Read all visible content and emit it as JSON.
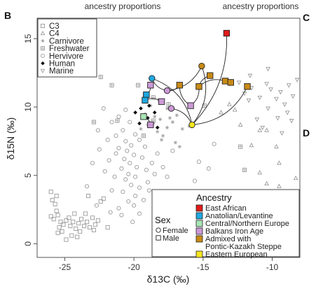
{
  "header": {
    "left_text": "ancestry proportions",
    "right_text": "ancestry proportions"
  },
  "panel_letters": {
    "left": "B",
    "right_top": "C",
    "right_mid": "D"
  },
  "chart_data": {
    "type": "scatter",
    "title": "",
    "xlabel": "δ13C (‰)",
    "ylabel": "δ15N (‰)",
    "xlim": [
      -27,
      -8
    ],
    "ylim": [
      -1,
      16.5
    ],
    "xticks": [
      -25,
      -20,
      -15,
      -10
    ],
    "yticks": [
      0,
      5,
      10,
      15
    ],
    "grid": false,
    "reference_groups": {
      "legend_position": "top-left",
      "entries": [
        {
          "name": "C3",
          "marker": "square"
        },
        {
          "name": "C4",
          "marker": "triangle"
        },
        {
          "name": "Carnivore",
          "marker": "asterisk"
        },
        {
          "name": "Freshwater",
          "marker": "boxed-cross"
        },
        {
          "name": "Hervivore",
          "marker": "circle"
        },
        {
          "name": "Human",
          "marker": "diamond-filled"
        },
        {
          "name": "Marine",
          "marker": "triangle-down"
        }
      ],
      "color": "#9a9a9a"
    },
    "series": [
      {
        "name": "C3",
        "points": [
          [
            -26,
            3.8
          ],
          [
            -25.9,
            3.2
          ],
          [
            -25.7,
            2.9
          ],
          [
            -25.6,
            2.4
          ],
          [
            -25.5,
            2.1
          ],
          [
            -25.8,
            1.8
          ],
          [
            -25.3,
            1.6
          ],
          [
            -25.1,
            1.4
          ],
          [
            -25.4,
            1.2
          ],
          [
            -24.9,
            1.7
          ],
          [
            -24.7,
            1.9
          ],
          [
            -24.6,
            1.3
          ],
          [
            -24.4,
            1.6
          ],
          [
            -24.2,
            1.1
          ],
          [
            -24.0,
            1.5
          ],
          [
            -23.8,
            1.8
          ],
          [
            -23.6,
            1.3
          ],
          [
            -23.4,
            1.6
          ],
          [
            -23.2,
            1.2
          ],
          [
            -23.0,
            1.9
          ],
          [
            -22.8,
            1.4
          ],
          [
            -22.6,
            1.7
          ],
          [
            -24.5,
            0.6
          ],
          [
            -25.2,
            0.9
          ],
          [
            -23.9,
            0.9
          ],
          [
            -24.3,
            2.2
          ],
          [
            -25.6,
            3.5
          ],
          [
            -23.5,
            2.2
          ],
          [
            -23.3,
            3.5
          ],
          [
            -22.2,
            3.3
          ],
          [
            -24.9,
            0.3
          ],
          [
            -24.1,
            0.5
          ],
          [
            -22.9,
            1.0
          ],
          [
            -25.5,
            0.8
          ],
          [
            -21.9,
            1.2
          ],
          [
            -26.0,
            2.0
          ],
          [
            -22.4,
            3.1
          ]
        ]
      },
      {
        "name": "C4",
        "points": [
          [
            -13.1,
            10.2
          ],
          [
            -12.7,
            9.8
          ],
          [
            -12.3,
            8.7
          ],
          [
            -13.7,
            9.6
          ],
          [
            -10.4,
            8.3
          ],
          [
            -9.7,
            7.1
          ],
          [
            -9.5,
            5.9
          ],
          [
            -10.4,
            4.4
          ],
          [
            -8.3,
            4.8
          ],
          [
            -8.7,
            3.8
          ],
          [
            -9.5,
            4.2
          ],
          [
            -10.9,
            5.2
          ],
          [
            -11.5,
            7.2
          ],
          [
            -10.9,
            8.3
          ]
        ]
      },
      {
        "name": "Carnivore",
        "points": [
          [
            -18.1,
            9.1
          ],
          [
            -18.6,
            8.8
          ],
          [
            -17.6,
            8.5
          ],
          [
            -18.3,
            8.2
          ],
          [
            -17.9,
            7.9
          ],
          [
            -19.2,
            9.5
          ],
          [
            -19.0,
            8.7
          ],
          [
            -17.4,
            9.2
          ],
          [
            -17.2,
            8.9
          ],
          [
            -16.9,
            9.4
          ],
          [
            -18.8,
            10.1
          ],
          [
            -18.0,
            7.6
          ],
          [
            -17.0,
            7.4
          ],
          [
            -16.5,
            8.4
          ],
          [
            -16.7,
            7.1
          ],
          [
            -18.5,
            9.3
          ],
          [
            -19.5,
            8.4
          ],
          [
            -18.2,
            10.5
          ],
          [
            -17.6,
            9.9
          ],
          [
            -16.0,
            8.6
          ]
        ]
      },
      {
        "name": "Freshwater",
        "points": [
          [
            -22.9,
            8.9
          ],
          [
            -19.2,
            10.9
          ],
          [
            -18.6,
            10.7
          ],
          [
            -19.7,
            11.6
          ],
          [
            -21.6,
            11.6
          ],
          [
            -21.2,
            9.0
          ],
          [
            -19.3,
            7.9
          ],
          [
            -22.4,
            12.2
          ],
          [
            -14.9,
            10.1
          ],
          [
            -12.3,
            7.1
          ],
          [
            -12.0,
            5.4
          ],
          [
            -18.6,
            9.0
          ],
          [
            -17.5,
            10.2
          ]
        ]
      },
      {
        "name": "Hervivore",
        "points": [
          [
            -22.2,
            9.9
          ],
          [
            -21.1,
            9.3
          ],
          [
            -21.6,
            8.9
          ],
          [
            -20.8,
            8.3
          ],
          [
            -21.3,
            7.9
          ],
          [
            -20.6,
            7.5
          ],
          [
            -20.2,
            7.2
          ],
          [
            -21.1,
            7.0
          ],
          [
            -20.5,
            6.8
          ],
          [
            -20.0,
            6.5
          ],
          [
            -21.3,
            6.6
          ],
          [
            -20.7,
            6.2
          ],
          [
            -20.3,
            5.9
          ],
          [
            -19.8,
            5.6
          ],
          [
            -20.9,
            5.5
          ],
          [
            -20.4,
            5.1
          ],
          [
            -19.9,
            4.9
          ],
          [
            -20.6,
            4.7
          ],
          [
            -20.2,
            4.3
          ],
          [
            -19.6,
            4.1
          ],
          [
            -20.8,
            3.8
          ],
          [
            -19.9,
            3.5
          ],
          [
            -20.4,
            3.1
          ],
          [
            -20.0,
            2.8
          ],
          [
            -21.4,
            4.9
          ],
          [
            -19.4,
            6.3
          ],
          [
            -19.1,
            5.4
          ],
          [
            -19.0,
            4.5
          ],
          [
            -18.7,
            5.9
          ],
          [
            -18.5,
            5.1
          ],
          [
            -18.9,
            3.9
          ],
          [
            -19.3,
            3.2
          ],
          [
            -21.8,
            6.1
          ],
          [
            -22.1,
            5.3
          ],
          [
            -21.6,
            3.9
          ],
          [
            -22.5,
            6.9
          ],
          [
            -23.0,
            5.9
          ],
          [
            -23.4,
            4.2
          ],
          [
            -22.7,
            2.8
          ],
          [
            -21.1,
            2.6
          ],
          [
            -20.9,
            2.1
          ],
          [
            -21.7,
            2.3
          ],
          [
            -19.6,
            2.2
          ],
          [
            -18.3,
            6.6
          ],
          [
            -17.9,
            5.6
          ],
          [
            -17.6,
            4.9
          ],
          [
            -20.6,
            9.8
          ],
          [
            -20.3,
            8.9
          ],
          [
            -19.9,
            8.0
          ],
          [
            -19.6,
            7.6
          ],
          [
            -19.2,
            7.1
          ],
          [
            -21.9,
            7.6
          ],
          [
            -22.6,
            8.3
          ],
          [
            -20.1,
            1.6
          ],
          [
            -18.1,
            2.0
          ],
          [
            -15.6,
            4.6
          ],
          [
            -15.3,
            6.0
          ],
          [
            -17.2,
            6.8
          ],
          [
            -14.2,
            7.3
          ],
          [
            -14.6,
            5.5
          ]
        ]
      },
      {
        "name": "Human",
        "points": [
          [
            -19.5,
            9.9
          ],
          [
            -19.9,
            9.6
          ],
          [
            -19.3,
            9.3
          ],
          [
            -19.0,
            9.2
          ],
          [
            -19.6,
            8.8
          ],
          [
            -18.8,
            8.8
          ],
          [
            -18.5,
            9.6
          ],
          [
            -18.9,
            10.1
          ],
          [
            -18.3,
            8.5
          ],
          [
            -19.1,
            10.6
          ]
        ]
      },
      {
        "name": "Marine",
        "points": [
          [
            -12.0,
            11.0
          ],
          [
            -11.5,
            11.4
          ],
          [
            -11.7,
            10.5
          ],
          [
            -10.9,
            10.7
          ],
          [
            -10.4,
            11.7
          ],
          [
            -10.1,
            11.3
          ],
          [
            -9.7,
            10.6
          ],
          [
            -9.4,
            11.1
          ],
          [
            -9.1,
            10.2
          ],
          [
            -8.8,
            11.6
          ],
          [
            -8.5,
            10.8
          ],
          [
            -8.9,
            9.6
          ],
          [
            -9.6,
            9.2
          ],
          [
            -10.3,
            9.9
          ],
          [
            -11.1,
            9.1
          ],
          [
            -10.7,
            8.5
          ],
          [
            -9.3,
            8.1
          ],
          [
            -12.4,
            11.8
          ],
          [
            -13.1,
            11.7
          ],
          [
            -11.6,
            12.3
          ],
          [
            -10.3,
            12.8
          ],
          [
            -8.2,
            12.0
          ],
          [
            -8.6,
            9.0
          ]
        ]
      }
    ],
    "ancestry_individuals": {
      "legend_title": "Ancestry",
      "categories": [
        {
          "name": "East African",
          "color": "#e01b1b"
        },
        {
          "name": "Anatolian/Levantine",
          "color": "#1ea8e0"
        },
        {
          "name": "Central/Northern Europe",
          "color": "#a8e6b5"
        },
        {
          "name": "Balkans Iron Age",
          "color": "#cc99d6"
        },
        {
          "name": "Admixed with Pontic-Kazakh Steppe",
          "color": "#c98a16"
        },
        {
          "name": "Eastern European",
          "color": "#f5e61e"
        }
      ],
      "points": [
        {
          "x": -13.3,
          "y": 15.4,
          "category": "East African",
          "sex": "Male"
        },
        {
          "x": -18.7,
          "y": 12.1,
          "category": "Anatolian/Levantine",
          "sex": "Female"
        },
        {
          "x": -19.1,
          "y": 10.9,
          "category": "Anatolian/Levantine",
          "sex": "Male"
        },
        {
          "x": -19.2,
          "y": 10.5,
          "category": "Anatolian/Levantine",
          "sex": "Male"
        },
        {
          "x": -19.3,
          "y": 9.3,
          "category": "Central/Northern Europe",
          "sex": "Male"
        },
        {
          "x": -18.8,
          "y": 11.6,
          "category": "Balkans Iron Age",
          "sex": "Male"
        },
        {
          "x": -17.6,
          "y": 11.2,
          "category": "Balkans Iron Age",
          "sex": "Female"
        },
        {
          "x": -18.0,
          "y": 10.4,
          "category": "Balkans Iron Age",
          "sex": "Male"
        },
        {
          "x": -17.3,
          "y": 9.9,
          "category": "Balkans Iron Age",
          "sex": "Female"
        },
        {
          "x": -18.8,
          "y": 8.7,
          "category": "Balkans Iron Age",
          "sex": "Male"
        },
        {
          "x": -15.9,
          "y": 10.1,
          "category": "Balkans Iron Age",
          "sex": "Male"
        },
        {
          "x": -16.7,
          "y": 11.6,
          "category": "Admixed with Pontic-Kazakh Steppe",
          "sex": "Male"
        },
        {
          "x": -15.1,
          "y": 13.0,
          "category": "Admixed with Pontic-Kazakh Steppe",
          "sex": "Female"
        },
        {
          "x": -14.5,
          "y": 12.3,
          "category": "Admixed with Pontic-Kazakh Steppe",
          "sex": "Male"
        },
        {
          "x": -13.4,
          "y": 11.9,
          "category": "Admixed with Pontic-Kazakh Steppe",
          "sex": "Male"
        },
        {
          "x": -13.0,
          "y": 11.8,
          "category": "Admixed with Pontic-Kazakh Steppe",
          "sex": "Male"
        },
        {
          "x": -11.8,
          "y": 11.5,
          "category": "Admixed with Pontic-Kazakh Steppe",
          "sex": "Male"
        },
        {
          "x": -15.3,
          "y": 11.5,
          "category": "Admixed with Pontic-Kazakh Steppe",
          "sex": "Male"
        },
        {
          "x": -15.8,
          "y": 8.7,
          "category": "Eastern European",
          "sex": "Female"
        }
      ],
      "links": [
        [
          [
            -15.8,
            8.7
          ],
          [
            -13.3,
            15.4
          ]
        ],
        [
          [
            -15.8,
            8.7
          ],
          [
            -18.7,
            12.1
          ]
        ],
        [
          [
            -15.8,
            8.7
          ],
          [
            -15.1,
            13.0
          ]
        ],
        [
          [
            -15.8,
            8.7
          ],
          [
            -11.8,
            11.5
          ]
        ],
        [
          [
            -15.8,
            8.7
          ],
          [
            -17.3,
            9.9
          ]
        ],
        [
          [
            -17.6,
            11.2
          ],
          [
            -16.7,
            11.6
          ]
        ],
        [
          [
            -17.6,
            11.2
          ],
          [
            -15.1,
            13.0
          ]
        ],
        [
          [
            -18.7,
            12.1
          ],
          [
            -17.6,
            11.2
          ]
        ],
        [
          [
            -19.1,
            10.9
          ],
          [
            -18.8,
            11.6
          ]
        ],
        [
          [
            -18.0,
            10.4
          ],
          [
            -19.2,
            10.5
          ]
        ],
        [
          [
            -18.8,
            8.7
          ],
          [
            -19.3,
            9.3
          ]
        ],
        [
          [
            -15.9,
            10.1
          ],
          [
            -15.3,
            11.5
          ]
        ],
        [
          [
            -16.7,
            11.6
          ],
          [
            -15.9,
            10.1
          ]
        ],
        [
          [
            -13.4,
            11.9
          ],
          [
            -15.3,
            11.5
          ]
        ],
        [
          [
            -14.5,
            12.3
          ],
          [
            -15.3,
            11.5
          ]
        ]
      ]
    },
    "sex_legend": {
      "title": "Sex",
      "entries": [
        {
          "name": "Female",
          "marker": "circle"
        },
        {
          "name": "Male",
          "marker": "square"
        }
      ]
    }
  }
}
